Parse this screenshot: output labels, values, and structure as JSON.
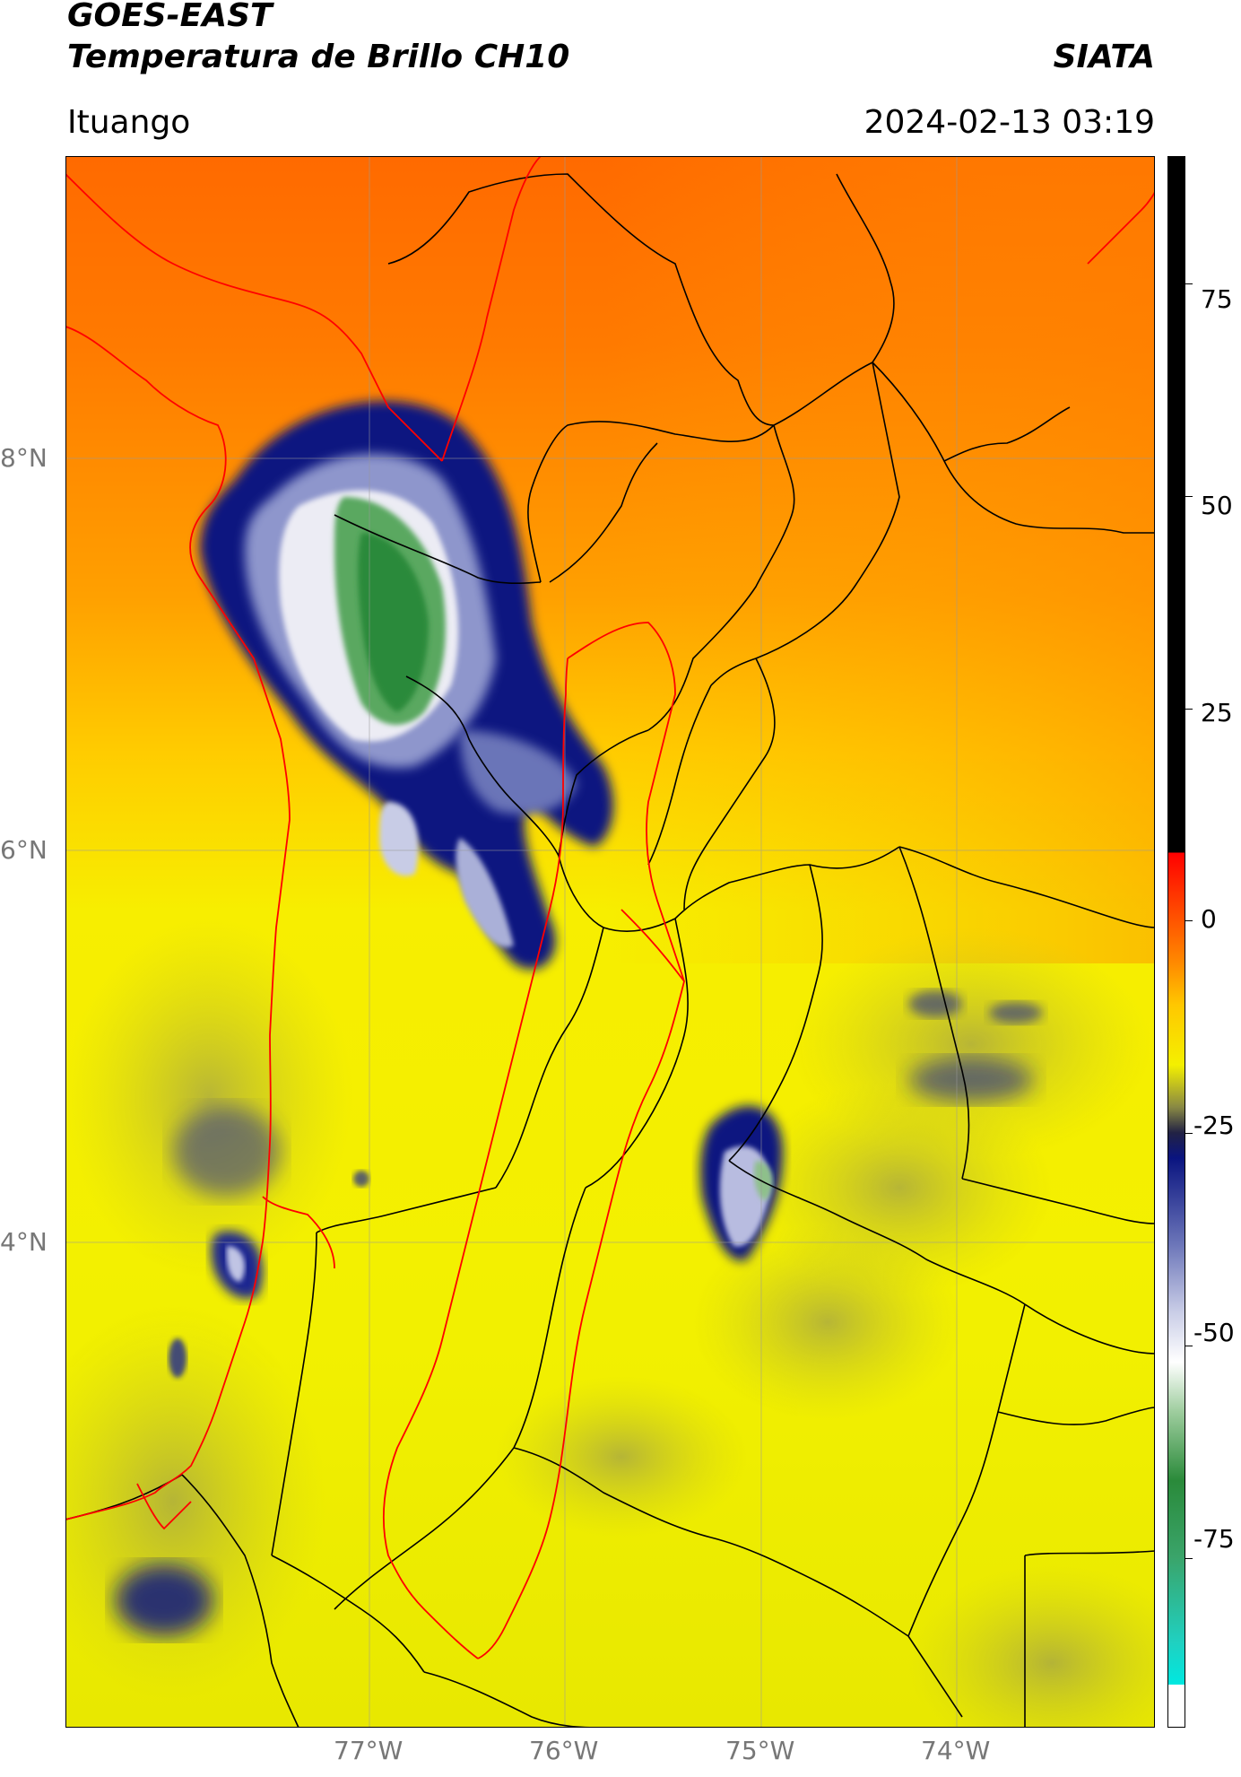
{
  "header": {
    "satellite": "GOES-EAST",
    "product": "Temperatura de Brillo CH10",
    "org": "SIATA",
    "location": "Ituango",
    "datetime": "2024-02-13 03:19"
  },
  "map": {
    "lat_labels": [
      "8°N",
      "6°N",
      "4°N"
    ],
    "lon_labels": [
      "77°W",
      "76°W",
      "75°W",
      "74°W"
    ]
  },
  "colorbar": {
    "tick_labels": [
      "75",
      "50",
      "25",
      "0",
      "-25",
      "-50",
      "-75"
    ],
    "min": -95,
    "max": 90
  },
  "colors": {
    "warm_orange": "#ff6a00",
    "mid_yellow": "#f4f000",
    "cold_navy": "#0a1480",
    "coldest_green": "#2a8a3a",
    "admin_boundary": "#000000",
    "watershed_boundary": "#ff0000"
  }
}
